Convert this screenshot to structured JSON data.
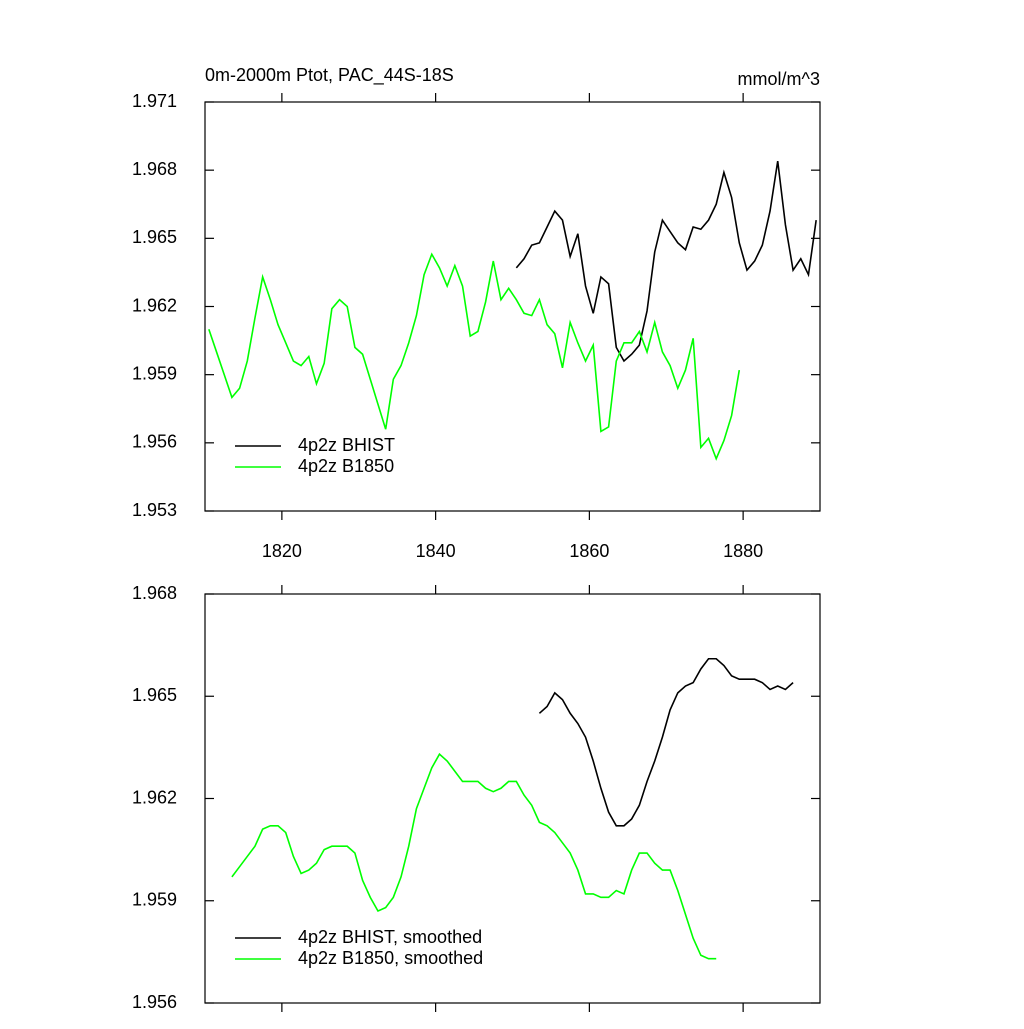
{
  "chart_data": [
    {
      "type": "line",
      "title": "0m-2000m Ptot, PAC_44S-18S",
      "subtitle": "mmol/m^3",
      "xlim": [
        1810,
        1890
      ],
      "xticks": [
        1820,
        1840,
        1860,
        1880
      ],
      "xtick_labels": true,
      "ylim": [
        1.953,
        1.971
      ],
      "yticks": [
        1.953,
        1.956,
        1.959,
        1.962,
        1.965,
        1.968,
        1.971
      ],
      "legend": "lower left",
      "series": [
        {
          "name": "4p2z BHIST",
          "color": "#000000",
          "x": [
            1850.5,
            1851.5,
            1852.5,
            1853.5,
            1854.5,
            1855.5,
            1856.5,
            1857.5,
            1858.5,
            1859.5,
            1860.5,
            1861.5,
            1862.5,
            1863.5,
            1864.5,
            1865.5,
            1866.5,
            1867.5,
            1868.5,
            1869.5,
            1870.5,
            1871.5,
            1872.5,
            1873.5,
            1874.5,
            1875.5,
            1876.5,
            1877.5,
            1878.5,
            1879.5,
            1880.5,
            1881.5,
            1882.5,
            1883.5,
            1884.5,
            1885.5,
            1886.5,
            1887.5,
            1888.5,
            1889.5
          ],
          "values": [
            1.9637,
            1.9641,
            1.9647,
            1.9648,
            1.9655,
            1.9662,
            1.9658,
            1.9642,
            1.9652,
            1.9629,
            1.9617,
            1.9633,
            1.963,
            1.9602,
            1.9596,
            1.9599,
            1.9603,
            1.9618,
            1.9644,
            1.9658,
            1.9653,
            1.9648,
            1.9645,
            1.9655,
            1.9654,
            1.9658,
            1.9665,
            1.9679,
            1.9668,
            1.9648,
            1.9636,
            1.964,
            1.9647,
            1.9662,
            1.9684,
            1.9656,
            1.9636,
            1.9641,
            1.9634,
            1.9658
          ]
        },
        {
          "name": "4p2z B1850",
          "color": "#00ff00",
          "x": [
            1810.5,
            1811.5,
            1812.5,
            1813.5,
            1814.5,
            1815.5,
            1816.5,
            1817.5,
            1818.5,
            1819.5,
            1820.5,
            1821.5,
            1822.5,
            1823.5,
            1824.5,
            1825.5,
            1826.5,
            1827.5,
            1828.5,
            1829.5,
            1830.5,
            1831.5,
            1832.5,
            1833.5,
            1834.5,
            1835.5,
            1836.5,
            1837.5,
            1838.5,
            1839.5,
            1840.5,
            1841.5,
            1842.5,
            1843.5,
            1844.5,
            1845.5,
            1846.5,
            1847.5,
            1848.5,
            1849.5,
            1850.5,
            1851.5,
            1852.5,
            1853.5,
            1854.5,
            1855.5,
            1856.5,
            1857.5,
            1858.5,
            1859.5,
            1860.5,
            1861.5,
            1862.5,
            1863.5,
            1864.5,
            1865.5,
            1866.5,
            1867.5,
            1868.5,
            1869.5,
            1870.5,
            1871.5,
            1872.5,
            1873.5,
            1874.5,
            1875.5,
            1876.5,
            1877.5,
            1878.5,
            1879.5
          ],
          "values": [
            1.961,
            1.96,
            1.959,
            1.958,
            1.9584,
            1.9596,
            1.9615,
            1.9633,
            1.9623,
            1.9612,
            1.9604,
            1.9596,
            1.9594,
            1.9598,
            1.9586,
            1.9595,
            1.9619,
            1.9623,
            1.962,
            1.9602,
            1.9599,
            1.9588,
            1.9577,
            1.9566,
            1.9588,
            1.9594,
            1.9604,
            1.9616,
            1.9634,
            1.9643,
            1.9637,
            1.9629,
            1.9638,
            1.9629,
            1.9607,
            1.9609,
            1.9622,
            1.964,
            1.9623,
            1.9628,
            1.9623,
            1.9617,
            1.9616,
            1.9623,
            1.9612,
            1.9608,
            1.9593,
            1.9613,
            1.9604,
            1.9596,
            1.9603,
            1.9565,
            1.9567,
            1.9596,
            1.9604,
            1.9604,
            1.9609,
            1.96,
            1.9613,
            1.96,
            1.9594,
            1.9584,
            1.9592,
            1.9606,
            1.9558,
            1.9562,
            1.9553,
            1.9561,
            1.9572,
            1.9592
          ]
        }
      ]
    },
    {
      "type": "line",
      "xlim": [
        1810,
        1890
      ],
      "xticks": [
        1820,
        1840,
        1860,
        1880
      ],
      "xtick_labels": false,
      "ylim": [
        1.956,
        1.968
      ],
      "yticks": [
        1.956,
        1.959,
        1.962,
        1.965,
        1.968
      ],
      "legend": "lower left",
      "series": [
        {
          "name": "4p2z BHIST, smoothed",
          "color": "#000000",
          "x": [
            1853.5,
            1854.5,
            1855.5,
            1856.5,
            1857.5,
            1858.5,
            1859.5,
            1860.5,
            1861.5,
            1862.5,
            1863.5,
            1864.5,
            1865.5,
            1866.5,
            1867.5,
            1868.5,
            1869.5,
            1870.5,
            1871.5,
            1872.5,
            1873.5,
            1874.5,
            1875.5,
            1876.5,
            1877.5,
            1878.5,
            1879.5,
            1880.5,
            1881.5,
            1882.5,
            1883.5,
            1884.5,
            1885.5,
            1886.5
          ],
          "values": [
            1.9645,
            1.9647,
            1.9651,
            1.9649,
            1.9645,
            1.9642,
            1.9638,
            1.9631,
            1.9623,
            1.9616,
            1.9612,
            1.9612,
            1.9614,
            1.9618,
            1.9625,
            1.9631,
            1.9638,
            1.9646,
            1.9651,
            1.9653,
            1.9654,
            1.9658,
            1.9661,
            1.9661,
            1.9659,
            1.9656,
            1.9655,
            1.9655,
            1.9655,
            1.9654,
            1.9652,
            1.9653,
            1.9652,
            1.9654
          ]
        },
        {
          "name": "4p2z B1850, smoothed",
          "color": "#00ff00",
          "x": [
            1813.5,
            1814.5,
            1815.5,
            1816.5,
            1817.5,
            1818.5,
            1819.5,
            1820.5,
            1821.5,
            1822.5,
            1823.5,
            1824.5,
            1825.5,
            1826.5,
            1827.5,
            1828.5,
            1829.5,
            1830.5,
            1831.5,
            1832.5,
            1833.5,
            1834.5,
            1835.5,
            1836.5,
            1837.5,
            1838.5,
            1839.5,
            1840.5,
            1841.5,
            1842.5,
            1843.5,
            1844.5,
            1845.5,
            1846.5,
            1847.5,
            1848.5,
            1849.5,
            1850.5,
            1851.5,
            1852.5,
            1853.5,
            1854.5,
            1855.5,
            1856.5,
            1857.5,
            1858.5,
            1859.5,
            1860.5,
            1861.5,
            1862.5,
            1863.5,
            1864.5,
            1865.5,
            1866.5,
            1867.5,
            1868.5,
            1869.5,
            1870.5,
            1871.5,
            1872.5,
            1873.5,
            1874.5,
            1875.5,
            1876.5
          ],
          "values": [
            1.9597,
            1.96,
            1.9603,
            1.9606,
            1.9611,
            1.9612,
            1.9612,
            1.961,
            1.9603,
            1.9598,
            1.9599,
            1.9601,
            1.9605,
            1.9606,
            1.9606,
            1.9606,
            1.9604,
            1.9596,
            1.9591,
            1.9587,
            1.9588,
            1.9591,
            1.9597,
            1.9606,
            1.9617,
            1.9623,
            1.9629,
            1.9633,
            1.9631,
            1.9628,
            1.9625,
            1.9625,
            1.9625,
            1.9623,
            1.9622,
            1.9623,
            1.9625,
            1.9625,
            1.9621,
            1.9618,
            1.9613,
            1.9612,
            1.961,
            1.9607,
            1.9604,
            1.9599,
            1.9592,
            1.9592,
            1.9591,
            1.9591,
            1.9593,
            1.9592,
            1.9599,
            1.9604,
            1.9604,
            1.9601,
            1.9599,
            1.9599,
            1.9593,
            1.9586,
            1.9579,
            1.9574,
            1.9573,
            1.9573
          ]
        }
      ]
    }
  ]
}
